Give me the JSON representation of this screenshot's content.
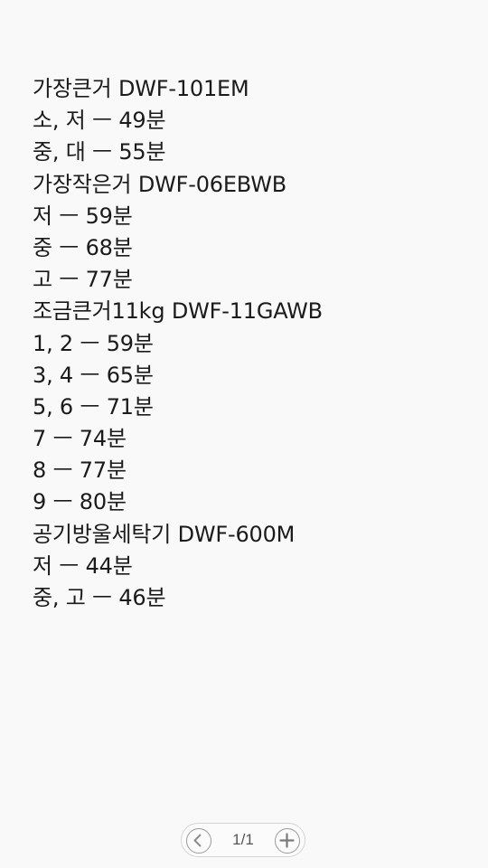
{
  "note": {
    "lines": [
      "가장큰거 DWF-101EM",
      "소, 저 ㅡ 49분",
      "중, 대 ㅡ 55분",
      "가장작은거 DWF-06EBWB",
      "저 ㅡ 59분",
      "중 ㅡ 68분",
      "고 ㅡ 77분",
      "조금큰거11kg DWF-11GAWB",
      "1, 2 ㅡ 59분",
      "3, 4 ㅡ 65분",
      "5, 6 ㅡ 71분",
      "7 ㅡ 74분",
      "8 ㅡ 77분",
      "9 ㅡ 80분",
      "공기방울세탁기 DWF-600M",
      "저 ㅡ 44분",
      "중, 고 ㅡ 46분"
    ]
  },
  "pager": {
    "page_indicator": "1/1",
    "prev_icon": "chevron-left-icon",
    "next_icon": "plus-icon"
  }
}
